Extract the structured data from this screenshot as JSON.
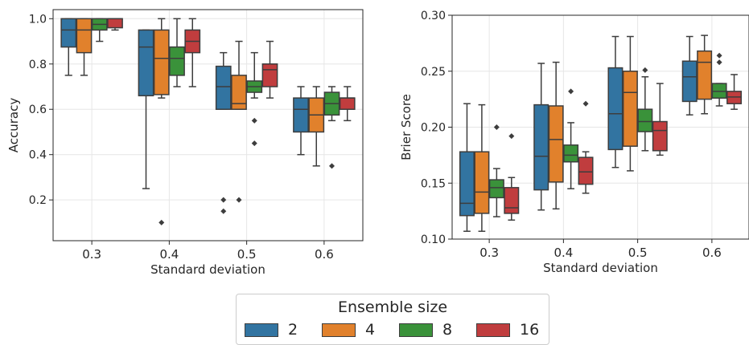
{
  "legend": {
    "title": "Ensemble size",
    "entries": [
      {
        "label": "2",
        "color": "#3274a1"
      },
      {
        "label": "4",
        "color": "#e1812c"
      },
      {
        "label": "8",
        "color": "#3a923a"
      },
      {
        "label": "16",
        "color": "#c03d3e"
      }
    ]
  },
  "chart_data": [
    {
      "type": "box",
      "xlabel": "Standard deviation",
      "ylabel": "Accuracy",
      "categories": [
        "0.3",
        "0.4",
        "0.5",
        "0.6"
      ],
      "ylim": [
        0.02,
        1.04
      ],
      "yticks": [
        0.2,
        0.4,
        0.6,
        0.8,
        1.0
      ],
      "ytick_labels": [
        "0.2",
        "0.4",
        "0.6",
        "0.8",
        "1.0"
      ],
      "grid": true,
      "series": [
        {
          "name": "2",
          "boxes": [
            {
              "lo": 0.75,
              "q1": 0.875,
              "med": 0.95,
              "q3": 1.0,
              "hi": 1.0,
              "outliers": []
            },
            {
              "lo": 0.25,
              "q1": 0.66,
              "med": 0.875,
              "q3": 0.95,
              "hi": 0.95,
              "outliers": []
            },
            {
              "lo": 0.6,
              "q1": 0.6,
              "med": 0.7,
              "q3": 0.79,
              "hi": 0.85,
              "outliers": [
                0.2,
                0.15
              ]
            },
            {
              "lo": 0.4,
              "q1": 0.5,
              "med": 0.6,
              "q3": 0.65,
              "hi": 0.7,
              "outliers": []
            }
          ]
        },
        {
          "name": "4",
          "boxes": [
            {
              "lo": 0.75,
              "q1": 0.85,
              "med": 0.95,
              "q3": 1.0,
              "hi": 1.0,
              "outliers": []
            },
            {
              "lo": 0.65,
              "q1": 0.665,
              "med": 0.825,
              "q3": 0.95,
              "hi": 1.0,
              "outliers": [
                0.1
              ]
            },
            {
              "lo": 0.6,
              "q1": 0.6,
              "med": 0.625,
              "q3": 0.75,
              "hi": 0.9,
              "outliers": [
                0.2
              ]
            },
            {
              "lo": 0.35,
              "q1": 0.5,
              "med": 0.575,
              "q3": 0.65,
              "hi": 0.7,
              "outliers": []
            }
          ]
        },
        {
          "name": "8",
          "boxes": [
            {
              "lo": 0.9,
              "q1": 0.95,
              "med": 0.975,
              "q3": 1.0,
              "hi": 1.0,
              "outliers": []
            },
            {
              "lo": 0.7,
              "q1": 0.75,
              "med": 0.825,
              "q3": 0.875,
              "hi": 1.0,
              "outliers": []
            },
            {
              "lo": 0.65,
              "q1": 0.675,
              "med": 0.7,
              "q3": 0.725,
              "hi": 0.85,
              "outliers": [
                0.55,
                0.45
              ]
            },
            {
              "lo": 0.55,
              "q1": 0.575,
              "med": 0.625,
              "q3": 0.675,
              "hi": 0.7,
              "outliers": [
                0.35
              ]
            }
          ]
        },
        {
          "name": "16",
          "boxes": [
            {
              "lo": 0.95,
              "q1": 0.96,
              "med": 1.0,
              "q3": 1.0,
              "hi": 1.0,
              "outliers": []
            },
            {
              "lo": 0.7,
              "q1": 0.85,
              "med": 0.9,
              "q3": 0.95,
              "hi": 1.0,
              "outliers": []
            },
            {
              "lo": 0.65,
              "q1": 0.7,
              "med": 0.775,
              "q3": 0.8,
              "hi": 0.9,
              "outliers": []
            },
            {
              "lo": 0.55,
              "q1": 0.6,
              "med": 0.65,
              "q3": 0.65,
              "hi": 0.7,
              "outliers": []
            }
          ]
        }
      ]
    },
    {
      "type": "box",
      "xlabel": "Standard deviation",
      "ylabel": "Brier Score",
      "categories": [
        "0.3",
        "0.4",
        "0.5",
        "0.6"
      ],
      "ylim": [
        0.1,
        0.3
      ],
      "yticks": [
        0.1,
        0.15,
        0.2,
        0.25,
        0.3
      ],
      "ytick_labels": [
        "0.10",
        "0.15",
        "0.20",
        "0.25",
        "0.30"
      ],
      "grid": true,
      "series": [
        {
          "name": "2",
          "boxes": [
            {
              "lo": 0.107,
              "q1": 0.121,
              "med": 0.132,
              "q3": 0.178,
              "hi": 0.221,
              "outliers": []
            },
            {
              "lo": 0.126,
              "q1": 0.144,
              "med": 0.174,
              "q3": 0.22,
              "hi": 0.257,
              "outliers": []
            },
            {
              "lo": 0.164,
              "q1": 0.18,
              "med": 0.212,
              "q3": 0.253,
              "hi": 0.281,
              "outliers": []
            },
            {
              "lo": 0.211,
              "q1": 0.223,
              "med": 0.245,
              "q3": 0.259,
              "hi": 0.281,
              "outliers": []
            }
          ]
        },
        {
          "name": "4",
          "boxes": [
            {
              "lo": 0.107,
              "q1": 0.123,
              "med": 0.142,
              "q3": 0.178,
              "hi": 0.22,
              "outliers": []
            },
            {
              "lo": 0.127,
              "q1": 0.151,
              "med": 0.189,
              "q3": 0.219,
              "hi": 0.258,
              "outliers": []
            },
            {
              "lo": 0.161,
              "q1": 0.183,
              "med": 0.231,
              "q3": 0.25,
              "hi": 0.281,
              "outliers": []
            },
            {
              "lo": 0.212,
              "q1": 0.225,
              "med": 0.258,
              "q3": 0.268,
              "hi": 0.282,
              "outliers": []
            }
          ]
        },
        {
          "name": "8",
          "boxes": [
            {
              "lo": 0.12,
              "q1": 0.137,
              "med": 0.146,
              "q3": 0.153,
              "hi": 0.163,
              "outliers": [
                0.2
              ]
            },
            {
              "lo": 0.145,
              "q1": 0.169,
              "med": 0.175,
              "q3": 0.184,
              "hi": 0.204,
              "outliers": [
                0.232
              ]
            },
            {
              "lo": 0.179,
              "q1": 0.196,
              "med": 0.205,
              "q3": 0.216,
              "hi": 0.245,
              "outliers": [
                0.251
              ]
            },
            {
              "lo": 0.219,
              "q1": 0.226,
              "med": 0.232,
              "q3": 0.239,
              "hi": 0.239,
              "outliers": [
                0.264,
                0.258
              ]
            }
          ]
        },
        {
          "name": "16",
          "boxes": [
            {
              "lo": 0.117,
              "q1": 0.123,
              "med": 0.128,
              "q3": 0.146,
              "hi": 0.155,
              "outliers": [
                0.192
              ]
            },
            {
              "lo": 0.141,
              "q1": 0.149,
              "med": 0.16,
              "q3": 0.173,
              "hi": 0.178,
              "outliers": [
                0.221
              ]
            },
            {
              "lo": 0.175,
              "q1": 0.179,
              "med": 0.197,
              "q3": 0.205,
              "hi": 0.239,
              "outliers": []
            },
            {
              "lo": 0.216,
              "q1": 0.221,
              "med": 0.227,
              "q3": 0.232,
              "hi": 0.247,
              "outliers": []
            }
          ]
        }
      ]
    }
  ]
}
